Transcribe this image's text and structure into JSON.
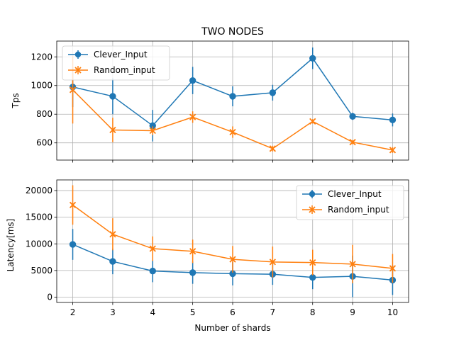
{
  "chart_data": [
    {
      "type": "line",
      "title": "TWO NODES",
      "xlabel": "",
      "ylabel": "Tps",
      "x": [
        2,
        3,
        4,
        5,
        6,
        7,
        8,
        9,
        10
      ],
      "xlim": [
        1.6,
        10.4
      ],
      "ylim": [
        480,
        1310
      ],
      "yticks": [
        600,
        800,
        1000,
        1200
      ],
      "grid": true,
      "legend_position": "upper-left",
      "series": [
        {
          "name": "Clever_Input",
          "color": "#1f77b4",
          "marker": "circle",
          "values": [
            990,
            925,
            720,
            1035,
            925,
            950,
            1190,
            785,
            760
          ],
          "errors": [
            140,
            125,
            110,
            95,
            70,
            55,
            75,
            25,
            45
          ]
        },
        {
          "name": "Random_input",
          "color": "#ff7f0e",
          "marker": "x",
          "values": [
            970,
            690,
            685,
            780,
            675,
            560,
            750,
            605,
            550
          ],
          "errors": [
            235,
            85,
            30,
            40,
            40,
            20,
            15,
            15,
            20
          ]
        }
      ]
    },
    {
      "type": "line",
      "title": "",
      "xlabel": "Number of shards",
      "ylabel": "Latency[ms]",
      "x": [
        2,
        3,
        4,
        5,
        6,
        7,
        8,
        9,
        10
      ],
      "xlim": [
        1.6,
        10.4
      ],
      "ylim": [
        -1000,
        22000
      ],
      "yticks": [
        0,
        5000,
        10000,
        15000,
        20000
      ],
      "grid": true,
      "legend_position": "upper-right",
      "series": [
        {
          "name": "Clever_Input",
          "color": "#1f77b4",
          "marker": "circle",
          "values": [
            9900,
            6700,
            4900,
            4600,
            4400,
            4300,
            3700,
            3900,
            3200
          ],
          "errors": [
            2900,
            2400,
            2100,
            2100,
            2200,
            2000,
            2200,
            3900,
            2800
          ]
        },
        {
          "name": "Random_input",
          "color": "#ff7f0e",
          "marker": "x",
          "values": [
            17300,
            11800,
            9100,
            8600,
            7100,
            6600,
            6500,
            6200,
            5400
          ],
          "errors": [
            3700,
            3000,
            2300,
            2200,
            2500,
            2900,
            2400,
            3600,
            2700
          ]
        }
      ]
    }
  ]
}
